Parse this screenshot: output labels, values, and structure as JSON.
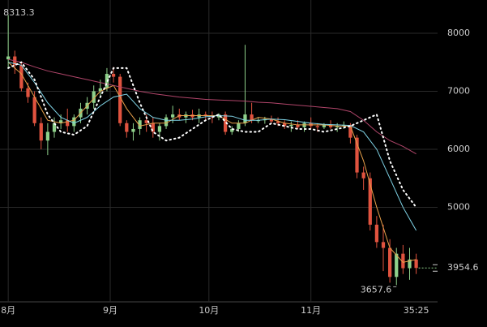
{
  "chart_data": {
    "type": "candlestick",
    "up_color": "#8fd18b",
    "down_color": "#e0533f",
    "grid": true,
    "xlim": [
      -2.5,
      130.5
    ],
    "ylim": [
      3370,
      8573
    ],
    "yticks": [
      8000,
      7000,
      6000,
      5000
    ],
    "xticks": [
      {
        "value": 0,
        "label": "8月"
      },
      {
        "value": 31,
        "label": "9月"
      },
      {
        "value": 61,
        "label": "10月"
      },
      {
        "value": 92,
        "label": "11月"
      }
    ],
    "x": [
      0,
      2,
      4,
      6,
      8,
      10,
      12,
      14,
      16,
      18,
      20,
      22,
      24,
      26,
      28,
      30,
      32,
      34,
      36,
      38,
      40,
      42,
      44,
      46,
      48,
      50,
      52,
      54,
      56,
      58,
      60,
      62,
      64,
      66,
      68,
      70,
      72,
      74,
      76,
      78,
      80,
      82,
      84,
      86,
      88,
      90,
      92,
      94,
      96,
      98,
      100,
      102,
      104,
      106,
      108,
      110,
      112,
      114,
      116,
      118,
      120,
      122,
      124
    ],
    "open": [
      7550,
      7600,
      7450,
      7050,
      6900,
      6450,
      6150,
      6300,
      6450,
      6500,
      6400,
      6550,
      6700,
      6800,
      7000,
      7050,
      7300,
      7250,
      6450,
      6300,
      6350,
      6500,
      6450,
      6300,
      6400,
      6550,
      6600,
      6550,
      6600,
      6550,
      6600,
      6580,
      6550,
      6600,
      6300,
      6350,
      6450,
      6600,
      6500,
      6500,
      6520,
      6480,
      6450,
      6400,
      6420,
      6380,
      6450,
      6400,
      6380,
      6420,
      6380,
      6400,
      6420,
      6200,
      5600,
      5500,
      4700,
      4400,
      4300,
      3800,
      4200,
      3950,
      4100
    ],
    "high": [
      8313.3,
      7700,
      7500,
      7150,
      7000,
      6550,
      6450,
      6550,
      6600,
      6700,
      6600,
      6800,
      6900,
      7100,
      7200,
      7400,
      7420,
      7300,
      6500,
      6450,
      6550,
      6600,
      6550,
      6450,
      6600,
      6750,
      6700,
      6650,
      6680,
      6700,
      6650,
      6650,
      6620,
      6650,
      6400,
      6500,
      7800,
      6800,
      6550,
      6560,
      6580,
      6550,
      6500,
      6480,
      6500,
      6480,
      6550,
      6450,
      6450,
      6500,
      6450,
      6480,
      6450,
      6250,
      5700,
      5600,
      4850,
      4700,
      4450,
      4300,
      4350,
      4300,
      4200
    ],
    "low": [
      7400,
      7300,
      7000,
      6800,
      6400,
      6000,
      5900,
      6200,
      6350,
      6300,
      6300,
      6450,
      6600,
      6700,
      6900,
      7000,
      7150,
      6400,
      6200,
      6150,
      6250,
      6300,
      6200,
      6150,
      6350,
      6450,
      6500,
      6450,
      6500,
      6450,
      6500,
      6450,
      6500,
      6250,
      6250,
      6300,
      6400,
      6450,
      6450,
      6440,
      6450,
      6400,
      6350,
      6300,
      6350,
      6300,
      6350,
      6300,
      6350,
      6350,
      6300,
      6350,
      6100,
      5500,
      5300,
      4600,
      4300,
      3900,
      3700,
      3657.6,
      3850,
      3750,
      3850
    ],
    "close": [
      7600,
      7450,
      7050,
      6900,
      6450,
      6150,
      6300,
      6450,
      6500,
      6400,
      6550,
      6700,
      6800,
      7000,
      7050,
      7300,
      7250,
      6450,
      6300,
      6350,
      6500,
      6450,
      6300,
      6400,
      6550,
      6600,
      6550,
      6600,
      6550,
      6600,
      6580,
      6550,
      6600,
      6300,
      6350,
      6450,
      6600,
      6500,
      6500,
      6520,
      6480,
      6450,
      6400,
      6420,
      6380,
      6450,
      6400,
      6380,
      6420,
      6380,
      6400,
      6420,
      6200,
      5600,
      5500,
      4700,
      4400,
      4300,
      3800,
      4200,
      3950,
      4100,
      3954.6
    ],
    "lines": [
      {
        "color": "#e8a04a",
        "style": "solid",
        "x": [
          0,
          4,
          8,
          12,
          16,
          20,
          24,
          28,
          32,
          36,
          40,
          44,
          48,
          52,
          56,
          60,
          64,
          68,
          72,
          76,
          80,
          84,
          88,
          92,
          96,
          100,
          104,
          108,
          112,
          116,
          120,
          124
        ],
        "values": [
          7500,
          7300,
          6900,
          6500,
          6450,
          6500,
          6750,
          7000,
          7100,
          6700,
          6400,
          6450,
          6450,
          6580,
          6580,
          6580,
          6580,
          6450,
          6450,
          6550,
          6520,
          6450,
          6420,
          6420,
          6420,
          6400,
          6400,
          5800,
          5000,
          4300,
          4050,
          4100
        ]
      },
      {
        "color": "#7fd3e6",
        "style": "solid",
        "x": [
          0,
          4,
          8,
          12,
          16,
          20,
          24,
          28,
          32,
          36,
          40,
          44,
          48,
          52,
          56,
          60,
          64,
          68,
          72,
          76,
          80,
          84,
          88,
          92,
          96,
          100,
          104,
          108,
          112,
          116,
          120,
          124
        ],
        "values": [
          7500,
          7450,
          7150,
          6800,
          6550,
          6450,
          6550,
          6750,
          6900,
          6950,
          6700,
          6550,
          6500,
          6500,
          6520,
          6560,
          6580,
          6570,
          6500,
          6500,
          6520,
          6510,
          6480,
          6450,
          6430,
          6420,
          6410,
          6300,
          6000,
          5500,
          5000,
          4600
        ]
      },
      {
        "color": "#b0456a",
        "style": "solid",
        "x": [
          0,
          4,
          8,
          12,
          16,
          20,
          24,
          28,
          32,
          36,
          40,
          44,
          48,
          52,
          56,
          60,
          64,
          68,
          72,
          76,
          80,
          84,
          88,
          92,
          96,
          100,
          104,
          108,
          112,
          116,
          120,
          124
        ],
        "values": [
          7550,
          7500,
          7420,
          7350,
          7300,
          7250,
          7200,
          7150,
          7100,
          7050,
          7000,
          6960,
          6930,
          6900,
          6880,
          6860,
          6850,
          6840,
          6830,
          6810,
          6800,
          6780,
          6760,
          6740,
          6720,
          6700,
          6650,
          6500,
          6300,
          6150,
          6050,
          5920
        ]
      },
      {
        "color": "#ffffff",
        "style": "dotted",
        "x": [
          0,
          4,
          8,
          12,
          16,
          20,
          24,
          28,
          32,
          36,
          40,
          44,
          48,
          52,
          56,
          60,
          64,
          68,
          72,
          76,
          80,
          84,
          88,
          92,
          96,
          100,
          104,
          108,
          112,
          116,
          120,
          124
        ],
        "values": [
          7400,
          7500,
          7200,
          6600,
          6300,
          6250,
          6400,
          6900,
          7400,
          7400,
          6800,
          6300,
          6150,
          6200,
          6350,
          6500,
          6600,
          6350,
          6300,
          6300,
          6450,
          6400,
          6350,
          6350,
          6300,
          6350,
          6400,
          6500,
          6600,
          5800,
          5300,
          5000
        ]
      }
    ],
    "max_label": 8313.3,
    "min_label": 3657.6,
    "last_price": 3954.6,
    "countdown": "35:25"
  }
}
